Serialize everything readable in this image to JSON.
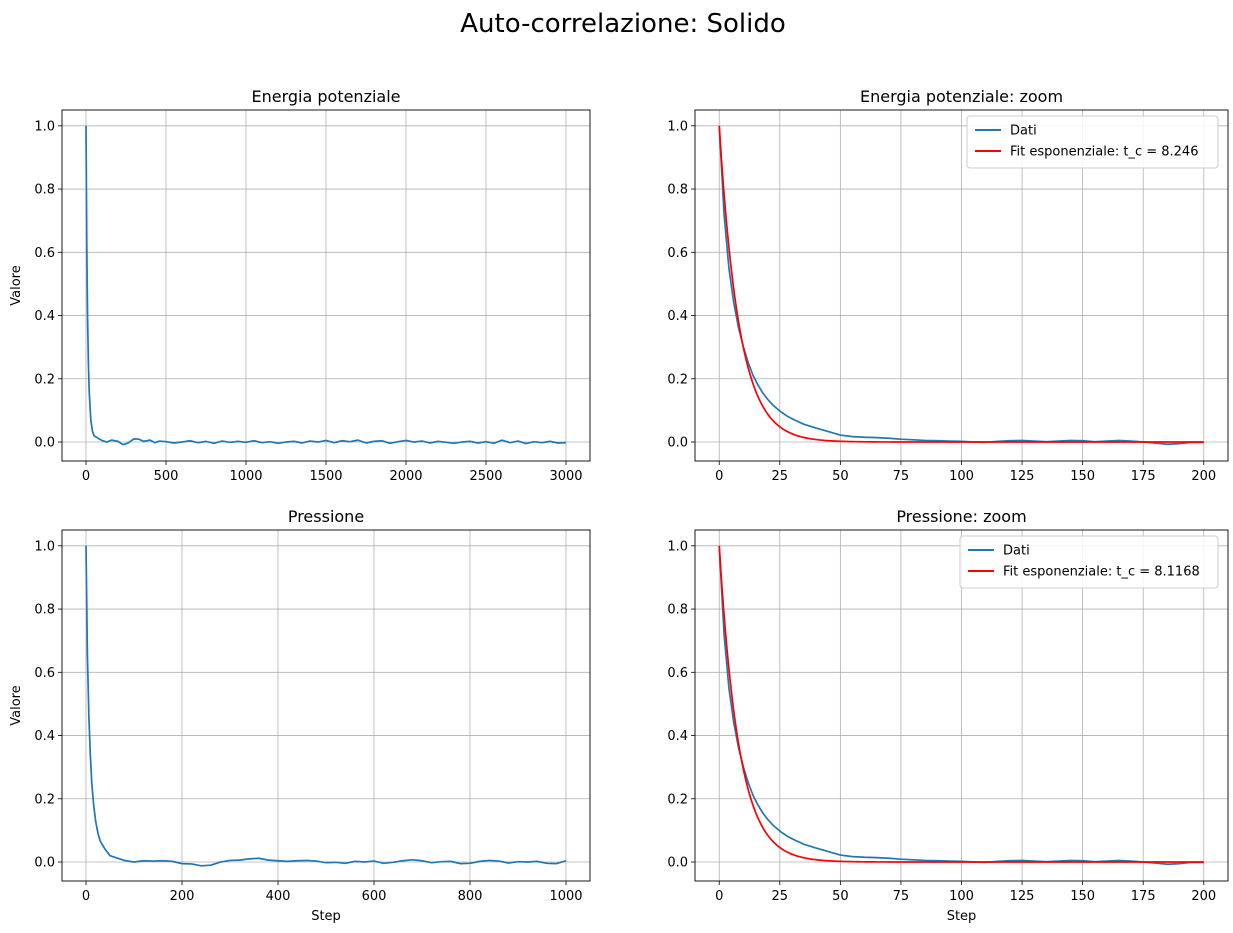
{
  "figure": {
    "suptitle": "Auto-correlazione: Solido"
  },
  "colors": {
    "data_line": "#1f77b4",
    "fit_line": "#ff0000",
    "grid": "#b0b0b0"
  },
  "chart_data": [
    {
      "type": "line",
      "title": "Energia potenziale",
      "xlabel": "",
      "ylabel": "Valore",
      "xlim": [
        -150,
        3150
      ],
      "ylim": [
        -0.06,
        1.05
      ],
      "xticks": [
        0,
        500,
        1000,
        1500,
        2000,
        2500,
        3000
      ],
      "yticks": [
        0.0,
        0.2,
        0.4,
        0.6,
        0.8,
        1.0
      ],
      "xtick_labels": [
        "0",
        "500",
        "1000",
        "1500",
        "2000",
        "2500",
        "3000"
      ],
      "ytick_labels": [
        "0.0",
        "0.2",
        "0.4",
        "0.6",
        "0.8",
        "1.0"
      ],
      "grid": true,
      "series": [
        {
          "kind": "data",
          "x": [
            0,
            5,
            10,
            15,
            20,
            30,
            40,
            50,
            75,
            100,
            130,
            160,
            200,
            230,
            260,
            300,
            330,
            360,
            400,
            430,
            460,
            500,
            550,
            600,
            650,
            700,
            750,
            800,
            850,
            900,
            950,
            1000,
            1050,
            1100,
            1150,
            1200,
            1250,
            1300,
            1350,
            1400,
            1450,
            1500,
            1550,
            1600,
            1650,
            1700,
            1750,
            1800,
            1850,
            1900,
            1950,
            2000,
            2050,
            2100,
            2150,
            2200,
            2250,
            2300,
            2350,
            2400,
            2450,
            2500,
            2550,
            2600,
            2650,
            2700,
            2750,
            2800,
            2850,
            2900,
            2950,
            3000
          ],
          "y": [
            1.0,
            0.62,
            0.39,
            0.25,
            0.16,
            0.07,
            0.035,
            0.02,
            0.012,
            0.005,
            0.0,
            0.006,
            0.002,
            -0.008,
            -0.004,
            0.01,
            0.009,
            0.002,
            0.006,
            -0.002,
            0.003,
            0.001,
            -0.003,
            0.0,
            0.004,
            -0.002,
            0.002,
            -0.004,
            0.003,
            -0.001,
            0.002,
            -0.001,
            0.004,
            -0.002,
            0.001,
            -0.004,
            0.0,
            0.002,
            -0.003,
            0.003,
            0.0,
            0.005,
            -0.002,
            0.004,
            0.001,
            0.006,
            -0.003,
            0.002,
            0.004,
            -0.004,
            0.001,
            0.005,
            0.0,
            0.003,
            -0.003,
            0.002,
            -0.001,
            -0.004,
            0.0,
            0.002,
            -0.003,
            0.001,
            -0.004,
            0.006,
            -0.002,
            0.003,
            -0.005,
            0.001,
            -0.002,
            0.002,
            -0.003,
            -0.002
          ]
        }
      ]
    },
    {
      "type": "line",
      "title": "Energia potenziale: zoom",
      "xlabel": "",
      "ylabel": "",
      "xlim": [
        -10,
        210
      ],
      "ylim": [
        -0.06,
        1.05
      ],
      "xticks": [
        0,
        25,
        50,
        75,
        100,
        125,
        150,
        175,
        200
      ],
      "yticks": [
        0.0,
        0.2,
        0.4,
        0.6,
        0.8,
        1.0
      ],
      "xtick_labels": [
        "0",
        "25",
        "50",
        "75",
        "100",
        "125",
        "150",
        "175",
        "200"
      ],
      "ytick_labels": [
        "0.0",
        "0.2",
        "0.4",
        "0.6",
        "0.8",
        "1.0"
      ],
      "grid": true,
      "legend": "top-right",
      "series": [
        {
          "kind": "data",
          "name": "Dati",
          "x": [
            0,
            2,
            4,
            6,
            8,
            10,
            12,
            14,
            16,
            18,
            20,
            22,
            25,
            28,
            31,
            35,
            40,
            45,
            50,
            55,
            60,
            65,
            70,
            75,
            80,
            85,
            90,
            95,
            100,
            105,
            110,
            115,
            120,
            125,
            130,
            135,
            140,
            145,
            150,
            155,
            160,
            165,
            170,
            175,
            180,
            185,
            190,
            195,
            200
          ],
          "y": [
            1.0,
            0.72,
            0.55,
            0.44,
            0.36,
            0.3,
            0.25,
            0.21,
            0.18,
            0.155,
            0.135,
            0.118,
            0.098,
            0.082,
            0.07,
            0.056,
            0.044,
            0.033,
            0.022,
            0.017,
            0.015,
            0.014,
            0.012,
            0.009,
            0.007,
            0.005,
            0.004,
            0.003,
            0.002,
            0.0,
            -0.001,
            0.002,
            0.004,
            0.005,
            0.003,
            0.001,
            0.003,
            0.005,
            0.004,
            0.001,
            0.003,
            0.005,
            0.003,
            0.0,
            -0.003,
            -0.007,
            -0.005,
            -0.001,
            -0.001
          ]
        },
        {
          "kind": "fit",
          "name": "Fit esponenziale: t_c = 8.246",
          "function": "exp(-x/t_c)",
          "t_c": 8.246,
          "x_range": [
            0,
            200
          ]
        }
      ]
    },
    {
      "type": "line",
      "title": "Pressione",
      "xlabel": "Step",
      "ylabel": "Valore",
      "xlim": [
        -50,
        1050
      ],
      "ylim": [
        -0.06,
        1.05
      ],
      "xticks": [
        0,
        200,
        400,
        600,
        800,
        1000
      ],
      "yticks": [
        0.0,
        0.2,
        0.4,
        0.6,
        0.8,
        1.0
      ],
      "xtick_labels": [
        "0",
        "200",
        "400",
        "600",
        "800",
        "1000"
      ],
      "ytick_labels": [
        "0.0",
        "0.2",
        "0.4",
        "0.6",
        "0.8",
        "1.0"
      ],
      "grid": true,
      "series": [
        {
          "kind": "data",
          "x": [
            0,
            3,
            6,
            9,
            12,
            16,
            20,
            25,
            30,
            40,
            50,
            60,
            80,
            100,
            120,
            140,
            160,
            180,
            200,
            220,
            240,
            260,
            280,
            300,
            320,
            340,
            360,
            380,
            400,
            420,
            440,
            460,
            480,
            500,
            520,
            540,
            560,
            580,
            600,
            620,
            640,
            660,
            680,
            700,
            720,
            740,
            760,
            780,
            800,
            820,
            840,
            860,
            880,
            900,
            920,
            940,
            960,
            980,
            1000
          ],
          "y": [
            1.0,
            0.65,
            0.46,
            0.34,
            0.25,
            0.18,
            0.13,
            0.09,
            0.065,
            0.04,
            0.02,
            0.015,
            0.005,
            0.0,
            0.004,
            0.003,
            0.004,
            0.002,
            -0.005,
            -0.006,
            -0.012,
            -0.01,
            0.0,
            0.005,
            0.006,
            0.01,
            0.012,
            0.006,
            0.004,
            0.002,
            0.004,
            0.005,
            0.003,
            -0.002,
            -0.001,
            -0.004,
            0.002,
            0.0,
            0.003,
            -0.004,
            -0.001,
            0.004,
            0.007,
            0.004,
            -0.002,
            0.001,
            0.002,
            -0.005,
            -0.004,
            0.002,
            0.005,
            0.003,
            -0.003,
            0.001,
            0.0,
            0.002,
            -0.004,
            -0.005,
            0.004
          ]
        }
      ]
    },
    {
      "type": "line",
      "title": "Pressione: zoom",
      "xlabel": "Step",
      "ylabel": "",
      "xlim": [
        -10,
        210
      ],
      "ylim": [
        -0.06,
        1.05
      ],
      "xticks": [
        0,
        25,
        50,
        75,
        100,
        125,
        150,
        175,
        200
      ],
      "yticks": [
        0.0,
        0.2,
        0.4,
        0.6,
        0.8,
        1.0
      ],
      "xtick_labels": [
        "0",
        "25",
        "50",
        "75",
        "100",
        "125",
        "150",
        "175",
        "200"
      ],
      "ytick_labels": [
        "0.0",
        "0.2",
        "0.4",
        "0.6",
        "0.8",
        "1.0"
      ],
      "grid": true,
      "legend": "top-right",
      "series": [
        {
          "kind": "data",
          "name": "Dati",
          "x": [
            0,
            2,
            4,
            6,
            8,
            10,
            12,
            14,
            16,
            18,
            20,
            22,
            25,
            28,
            31,
            35,
            40,
            45,
            50,
            55,
            60,
            65,
            70,
            75,
            80,
            85,
            90,
            95,
            100,
            105,
            110,
            115,
            120,
            125,
            130,
            135,
            140,
            145,
            150,
            155,
            160,
            165,
            170,
            175,
            180,
            185,
            190,
            195,
            200
          ],
          "y": [
            1.0,
            0.72,
            0.55,
            0.44,
            0.36,
            0.3,
            0.25,
            0.21,
            0.18,
            0.155,
            0.135,
            0.118,
            0.098,
            0.082,
            0.07,
            0.056,
            0.044,
            0.033,
            0.022,
            0.017,
            0.015,
            0.014,
            0.012,
            0.009,
            0.007,
            0.005,
            0.004,
            0.003,
            0.002,
            0.0,
            -0.001,
            0.002,
            0.004,
            0.005,
            0.003,
            0.001,
            0.003,
            0.005,
            0.004,
            0.001,
            0.003,
            0.005,
            0.003,
            0.0,
            -0.003,
            -0.007,
            -0.005,
            -0.001,
            -0.001
          ]
        },
        {
          "kind": "fit",
          "name": "Fit esponenziale: t_c = 8.1168",
          "function": "exp(-x/t_c)",
          "t_c": 8.1168,
          "x_range": [
            0,
            200
          ]
        }
      ]
    }
  ]
}
